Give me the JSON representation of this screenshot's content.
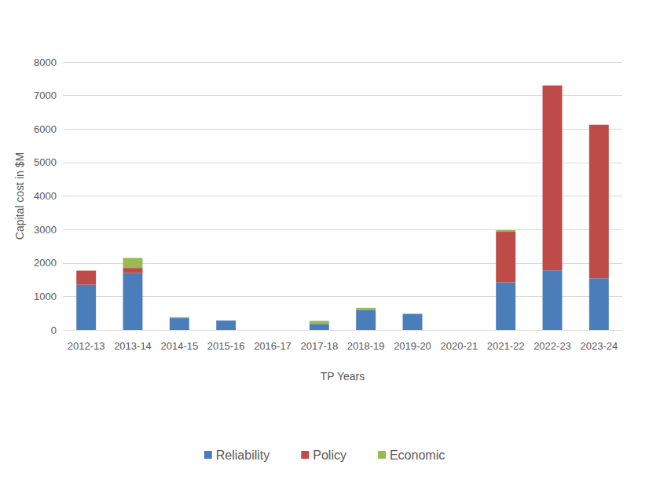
{
  "chart_data": {
    "type": "bar",
    "stacked": true,
    "grid": true,
    "legend": "bottom",
    "x_label": "TP Years",
    "y_label": "Capital cost in $M",
    "categories": [
      "2012-13",
      "2013-14",
      "2014-15",
      "2015-16",
      "2016-17",
      "2017-18",
      "2018-19",
      "2019-20",
      "2020-21",
      "2021-22",
      "2022-23",
      "2023-24"
    ],
    "series": [
      {
        "name": "Reliability",
        "color": "#4a7ebb",
        "values": [
          1350,
          1700,
          350,
          280,
          0,
          180,
          600,
          480,
          0,
          1420,
          1780,
          1540
        ]
      },
      {
        "name": "Policy",
        "color": "#be4b48",
        "values": [
          420,
          150,
          0,
          0,
          0,
          0,
          0,
          0,
          0,
          1510,
          5520,
          4590
        ]
      },
      {
        "name": "Economic",
        "color": "#98b954",
        "values": [
          0,
          300,
          30,
          0,
          0,
          90,
          60,
          0,
          0,
          50,
          0,
          0
        ]
      }
    ],
    "ylim": [
      0,
      8000
    ],
    "yticks": [
      0,
      1000,
      2000,
      3000,
      4000,
      5000,
      6000,
      7000,
      8000
    ]
  }
}
